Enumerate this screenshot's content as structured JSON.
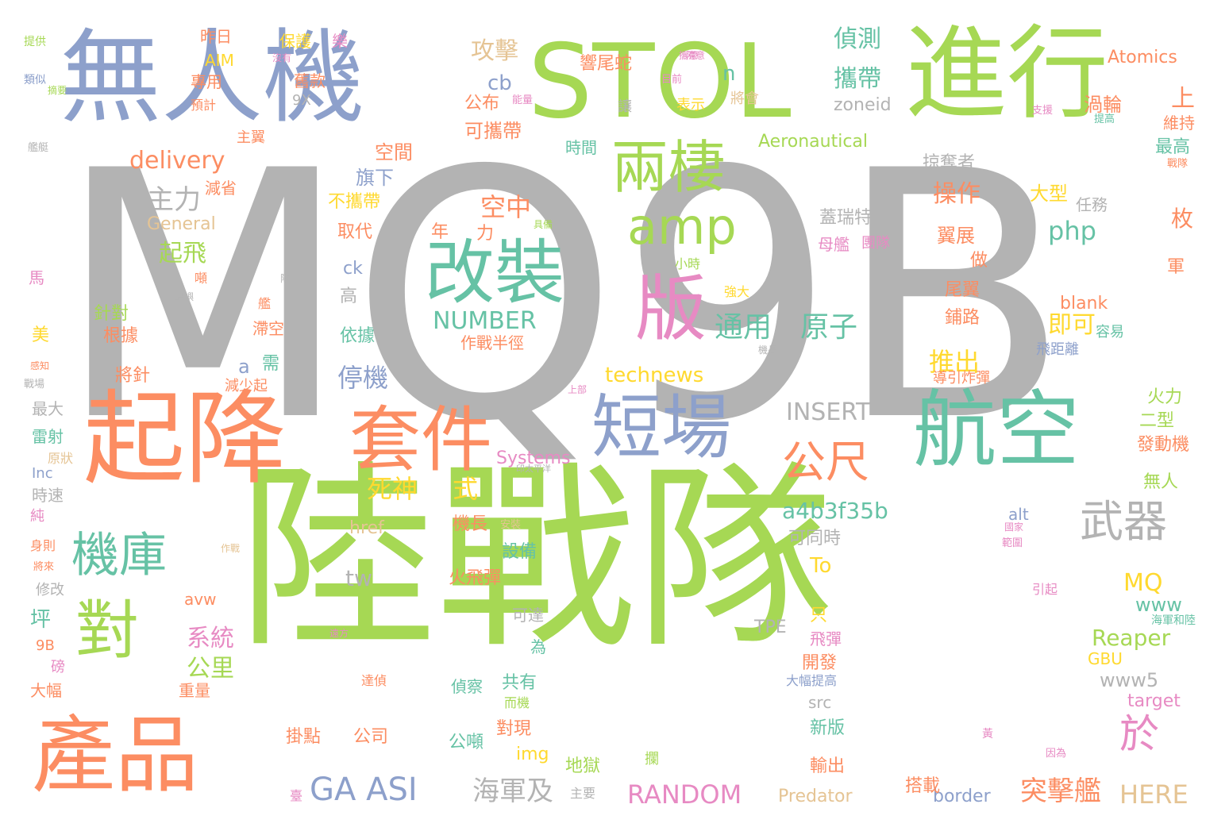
{
  "palette": {
    "gray": "#b3b3b3",
    "green": "#a6d854",
    "teal": "#66c2a5",
    "blue": "#8da0cb",
    "orange": "#fc8d62",
    "pink": "#e78ac3",
    "yellow": "#ffd92f",
    "tan": "#e5c494"
  },
  "words": [
    {
      "text": "MQ9B",
      "color": "gray"
    },
    {
      "text": "陸戰隊",
      "color": "green"
    },
    {
      "text": "無人機",
      "color": "blue"
    },
    {
      "text": "STOL",
      "color": "green"
    },
    {
      "text": "進行",
      "color": "green"
    },
    {
      "text": "起降",
      "color": "orange"
    },
    {
      "text": "套件",
      "color": "orange"
    },
    {
      "text": "航空",
      "color": "teal"
    },
    {
      "text": "短場",
      "color": "blue"
    },
    {
      "text": "改裝",
      "color": "teal"
    },
    {
      "text": "兩棲",
      "color": "green"
    },
    {
      "text": "版",
      "color": "pink"
    },
    {
      "text": "amp",
      "color": "green"
    },
    {
      "text": "產品",
      "color": "orange"
    },
    {
      "text": "對",
      "color": "green"
    },
    {
      "text": "機庫",
      "color": "teal"
    },
    {
      "text": "公尺",
      "color": "orange"
    },
    {
      "text": "武器",
      "color": "gray"
    },
    {
      "text": "於",
      "color": "pink"
    },
    {
      "text": "GA ASI",
      "color": "blue"
    },
    {
      "text": "RANDOM",
      "color": "pink"
    },
    {
      "text": "突擊艦",
      "color": "orange"
    },
    {
      "text": "海軍及",
      "color": "gray"
    },
    {
      "text": "HERE",
      "color": "tan"
    },
    {
      "text": "通用",
      "color": "teal"
    },
    {
      "text": "原子",
      "color": "teal"
    },
    {
      "text": "NUMBER",
      "color": "teal"
    },
    {
      "text": "INSERT",
      "color": "gray"
    },
    {
      "text": "a4b3f35b",
      "color": "teal"
    },
    {
      "text": "delivery",
      "color": "orange"
    },
    {
      "text": "technews",
      "color": "yellow"
    },
    {
      "text": "死神",
      "color": "yellow"
    },
    {
      "text": "式",
      "color": "yellow"
    },
    {
      "text": "php",
      "color": "teal"
    },
    {
      "text": "主力",
      "color": "gray"
    },
    {
      "text": "空中",
      "color": "orange"
    },
    {
      "text": "Reaper",
      "color": "green"
    },
    {
      "text": "MQ",
      "color": "yellow"
    },
    {
      "text": "www",
      "color": "teal"
    },
    {
      "text": "www5",
      "color": "gray"
    },
    {
      "text": "系統",
      "color": "pink"
    },
    {
      "text": "公里",
      "color": "green"
    },
    {
      "text": "停機",
      "color": "blue"
    },
    {
      "text": "推出",
      "color": "yellow"
    },
    {
      "text": "即可",
      "color": "yellow"
    },
    {
      "text": "起飛",
      "color": "green"
    },
    {
      "text": "攻擊",
      "color": "tan"
    },
    {
      "text": "偵測",
      "color": "teal"
    },
    {
      "text": "攜帶",
      "color": "teal"
    },
    {
      "text": "上",
      "color": "orange"
    },
    {
      "text": "Atomics",
      "color": "orange"
    },
    {
      "text": "Aeronautical",
      "color": "green"
    },
    {
      "text": "zoneid",
      "color": "gray"
    },
    {
      "text": "n",
      "color": "teal"
    },
    {
      "text": "cb",
      "color": "blue"
    },
    {
      "text": "操作",
      "color": "orange"
    },
    {
      "text": "Systems",
      "color": "pink"
    },
    {
      "text": "To",
      "color": "yellow"
    },
    {
      "text": "tw",
      "color": "gray"
    },
    {
      "text": "坪",
      "color": "teal"
    },
    {
      "text": "可攜帶",
      "color": "orange"
    },
    {
      "text": "公布",
      "color": "orange"
    },
    {
      "text": "響尾蛇",
      "color": "orange"
    },
    {
      "text": "渦輪",
      "color": "orange"
    },
    {
      "text": "維持",
      "color": "orange"
    },
    {
      "text": "最高",
      "color": "teal"
    },
    {
      "text": "旗下",
      "color": "blue"
    },
    {
      "text": "空間",
      "color": "orange"
    },
    {
      "text": "不攜帶",
      "color": "yellow"
    },
    {
      "text": "取代",
      "color": "orange"
    },
    {
      "text": "力",
      "color": "orange"
    },
    {
      "text": "年",
      "color": "orange"
    },
    {
      "text": "減省",
      "color": "orange"
    },
    {
      "text": "General",
      "color": "tan"
    },
    {
      "text": "掠奪者",
      "color": "gray"
    },
    {
      "text": "蓋瑞特",
      "color": "gray"
    },
    {
      "text": "母艦",
      "color": "pink"
    },
    {
      "text": "團隊",
      "color": "pink"
    },
    {
      "text": "翼展",
      "color": "orange"
    },
    {
      "text": "大型",
      "color": "yellow"
    },
    {
      "text": "任務",
      "color": "gray"
    },
    {
      "text": "枚",
      "color": "orange"
    },
    {
      "text": "軍",
      "color": "orange"
    },
    {
      "text": "做",
      "color": "orange"
    },
    {
      "text": "尾翼",
      "color": "orange"
    },
    {
      "text": "鋪路",
      "color": "orange"
    },
    {
      "text": "blank",
      "color": "orange"
    },
    {
      "text": "飛距離",
      "color": "blue"
    },
    {
      "text": "容易",
      "color": "teal"
    },
    {
      "text": "導引炸彈",
      "color": "orange"
    },
    {
      "text": "火力",
      "color": "green"
    },
    {
      "text": "二型",
      "color": "green"
    },
    {
      "text": "發動機",
      "color": "orange"
    },
    {
      "text": "無人",
      "color": "green"
    },
    {
      "text": "alt",
      "color": "blue"
    },
    {
      "text": "引起",
      "color": "pink"
    },
    {
      "text": "海軍和陸",
      "color": "teal"
    },
    {
      "text": "GBU",
      "color": "yellow"
    },
    {
      "text": "target",
      "color": "pink"
    },
    {
      "text": "border",
      "color": "blue"
    },
    {
      "text": "Predator",
      "color": "tan"
    },
    {
      "text": "搭載",
      "color": "orange"
    },
    {
      "text": "輸出",
      "color": "orange"
    },
    {
      "text": "新版",
      "color": "teal"
    },
    {
      "text": "src",
      "color": "gray"
    },
    {
      "text": "大幅提高",
      "color": "blue"
    },
    {
      "text": "開發",
      "color": "orange"
    },
    {
      "text": "飛彈",
      "color": "pink"
    },
    {
      "text": "只",
      "color": "yellow"
    },
    {
      "text": "TPE",
      "color": "gray"
    },
    {
      "text": "可同時",
      "color": "gray"
    },
    {
      "text": "設備",
      "color": "teal"
    },
    {
      "text": "火飛彈",
      "color": "orange"
    },
    {
      "text": "機長",
      "color": "orange"
    },
    {
      "text": "href",
      "color": "tan"
    },
    {
      "text": "可達",
      "color": "gray"
    },
    {
      "text": "為",
      "color": "teal"
    },
    {
      "text": "共有",
      "color": "teal"
    },
    {
      "text": "偵察",
      "color": "teal"
    },
    {
      "text": "對現",
      "color": "orange"
    },
    {
      "text": "img",
      "color": "yellow"
    },
    {
      "text": "地獄",
      "color": "green"
    },
    {
      "text": "公噸",
      "color": "teal"
    },
    {
      "text": "掛點",
      "color": "orange"
    },
    {
      "text": "公司",
      "color": "orange"
    },
    {
      "text": "作戰半徑",
      "color": "orange"
    },
    {
      "text": "高",
      "color": "gray"
    },
    {
      "text": "依據",
      "color": "teal"
    },
    {
      "text": "ck",
      "color": "blue"
    },
    {
      "text": "a",
      "color": "blue"
    },
    {
      "text": "需",
      "color": "teal"
    },
    {
      "text": "滯空",
      "color": "orange"
    },
    {
      "text": "減少起",
      "color": "orange"
    },
    {
      "text": "avw",
      "color": "orange"
    },
    {
      "text": "重量",
      "color": "orange"
    },
    {
      "text": "將針",
      "color": "orange"
    },
    {
      "text": "根據",
      "color": "orange"
    },
    {
      "text": "針對",
      "color": "green"
    },
    {
      "text": "美",
      "color": "yellow"
    },
    {
      "text": "最大",
      "color": "gray"
    },
    {
      "text": "雷射",
      "color": "teal"
    },
    {
      "text": "原狀",
      "color": "tan"
    },
    {
      "text": "Inc",
      "color": "blue"
    },
    {
      "text": "時速",
      "color": "gray"
    },
    {
      "text": "純",
      "color": "pink"
    },
    {
      "text": "身則",
      "color": "orange"
    },
    {
      "text": "修改",
      "color": "gray"
    },
    {
      "text": "9B",
      "color": "orange"
    },
    {
      "text": "磅",
      "color": "pink"
    },
    {
      "text": "大幅",
      "color": "orange"
    },
    {
      "text": "馬",
      "color": "pink"
    },
    {
      "text": "專用",
      "color": "orange"
    },
    {
      "text": "預計",
      "color": "orange"
    },
    {
      "text": "AIM",
      "color": "yellow"
    },
    {
      "text": "昨日",
      "color": "orange"
    },
    {
      "text": "保護",
      "color": "yellow"
    },
    {
      "text": "舊款",
      "color": "orange"
    },
    {
      "text": "主翼",
      "color": "orange"
    },
    {
      "text": "9X",
      "color": "gray"
    },
    {
      "text": "時間",
      "color": "teal"
    },
    {
      "text": "讓",
      "color": "gray"
    },
    {
      "text": "表示",
      "color": "yellow"
    },
    {
      "text": "將會",
      "color": "tan"
    },
    {
      "text": "樂",
      "color": "pink"
    },
    {
      "text": "提供",
      "color": "green"
    },
    {
      "text": "類似",
      "color": "blue"
    },
    {
      "text": "沒有",
      "color": "pink"
    },
    {
      "text": "目前",
      "color": "pink"
    },
    {
      "text": "小時",
      "color": "green"
    },
    {
      "text": "強大",
      "color": "yellow"
    },
    {
      "text": "噸",
      "color": "orange"
    },
    {
      "text": "安裝",
      "color": "tan"
    },
    {
      "text": "作戰",
      "color": "tan"
    },
    {
      "text": "範圍",
      "color": "pink"
    },
    {
      "text": "國家",
      "color": "pink"
    },
    {
      "text": "因為",
      "color": "pink"
    },
    {
      "text": "主要",
      "color": "gray"
    },
    {
      "text": "將來",
      "color": "orange"
    },
    {
      "text": "艦",
      "color": "orange"
    },
    {
      "text": "島嶼",
      "color": "gray"
    },
    {
      "text": "隊",
      "color": "gray"
    },
    {
      "text": "摘要",
      "color": "green"
    },
    {
      "text": "艦艇",
      "color": "gray"
    },
    {
      "text": "戰場",
      "color": "gray"
    },
    {
      "text": "感知",
      "color": "orange"
    },
    {
      "text": "遠方",
      "color": "pink"
    },
    {
      "text": "達偵",
      "color": "orange"
    },
    {
      "text": "而機",
      "color": "green"
    },
    {
      "text": "攔",
      "color": "green"
    },
    {
      "text": "臺",
      "color": "pink"
    },
    {
      "text": "黃",
      "color": "pink"
    },
    {
      "text": "上部",
      "color": "pink"
    },
    {
      "text": "機長",
      "color": "gray"
    },
    {
      "text": "具備",
      "color": "green"
    },
    {
      "text": "隨意",
      "color": "pink"
    },
    {
      "text": "能量",
      "color": "pink"
    },
    {
      "text": "攜帶",
      "color": "pink"
    },
    {
      "text": "印太平洋",
      "color": "gray"
    },
    {
      "text": "戰隊",
      "color": "orange"
    },
    {
      "text": "支援",
      "color": "pink"
    },
    {
      "text": "提高",
      "color": "teal"
    }
  ]
}
